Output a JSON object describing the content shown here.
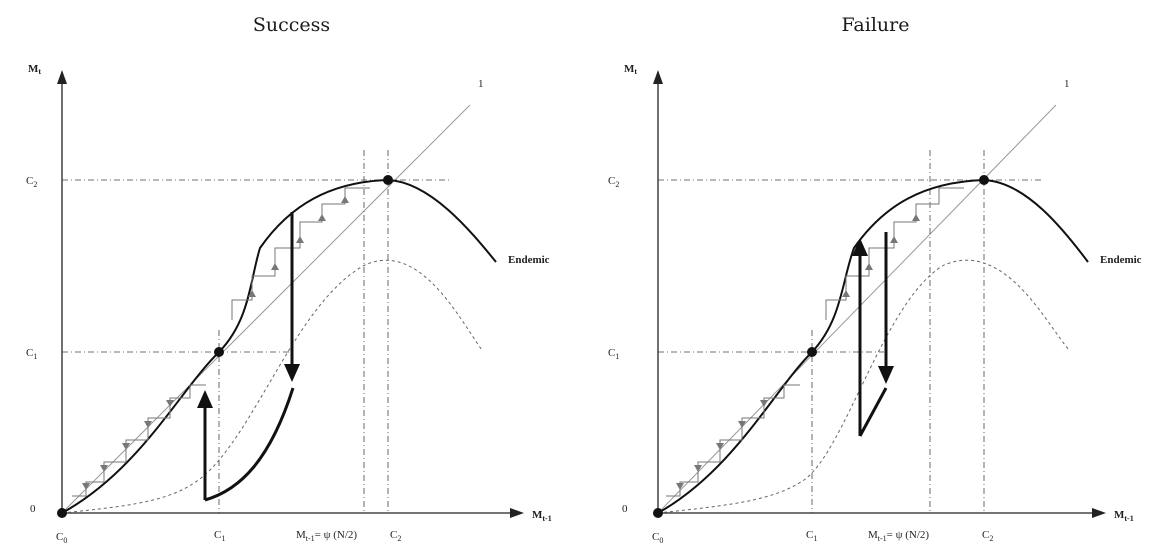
{
  "panels": [
    {
      "title": "Success",
      "y_axis_label": "M",
      "y_axis_sub": "t",
      "x_axis_label": "M",
      "x_axis_sub": "t-1",
      "diagonal_label": "1",
      "curve_label": "Endemic",
      "y_ticks": {
        "c2": "C",
        "c2_sub": "2",
        "c1": "C",
        "c1_sub": "1",
        "zero": "0"
      },
      "x_ticks": {
        "c0": "C",
        "c0_sub": "0",
        "c1": "C",
        "c1_sub": "1",
        "mid": "M",
        "mid_sub": "t-1",
        "mid_rest": "= ψ (N/2)",
        "c2": "C",
        "c2_sub": "2"
      }
    },
    {
      "title": "Failure",
      "y_axis_label": "M",
      "y_axis_sub": "t",
      "x_axis_label": "M",
      "x_axis_sub": "t-1",
      "diagonal_label": "1",
      "curve_label": "Endemic",
      "y_ticks": {
        "c2": "C",
        "c2_sub": "2",
        "c1": "C",
        "c1_sub": "1",
        "zero": "0"
      },
      "x_ticks": {
        "c0": "C",
        "c0_sub": "0",
        "c1": "C",
        "c1_sub": "1",
        "mid": "M",
        "mid_sub": "t-1",
        "mid_rest": "= ψ (N/2)",
        "c2": "C",
        "c2_sub": "2"
      }
    }
  ]
}
